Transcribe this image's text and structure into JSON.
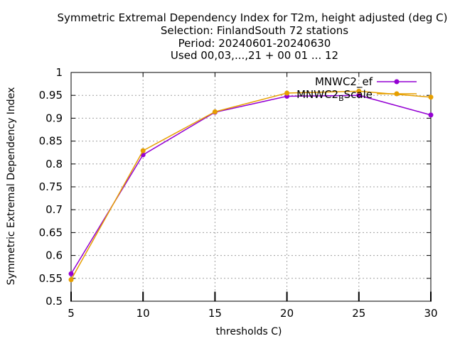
{
  "chart_data": {
    "type": "line",
    "title_lines": [
      "Symmetric Extremal Dependency Index  for T2m, height adjusted (deg C)",
      "Selection: FinlandSouth     72 stations",
      "Period: 20240601-20240630",
      "Used 00,03,...,21 + 00 01 ... 12"
    ],
    "xlabel": "thresholds C)",
    "ylabel": "Symmetric Extremal Dependency Index",
    "xlim": [
      5,
      30
    ],
    "ylim": [
      0.5,
      1.0
    ],
    "xticks": [
      "5",
      "10",
      "15",
      "20",
      "25",
      "30"
    ],
    "yticks": [
      "0.5",
      "0.55",
      "0.6",
      "0.65",
      "0.7",
      "0.75",
      "0.8",
      "0.85",
      "0.9",
      "0.95",
      "1"
    ],
    "grid": true,
    "legend_position": "top-right",
    "x": [
      5,
      10,
      15,
      20,
      25,
      30
    ],
    "series": [
      {
        "name": "MNWC2_ef",
        "legend_text": "MNWC2_ef",
        "color": "#9400d3",
        "values": [
          0.56,
          0.82,
          0.913,
          0.948,
          0.95,
          0.907
        ]
      },
      {
        "name": "MNWC2_BScale",
        "legend_text": "MNWC2",
        "legend_sub": "B",
        "legend_tail": "Scale",
        "color": "#e69f00",
        "values": [
          0.547,
          0.829,
          0.914,
          0.955,
          0.959,
          0.946
        ]
      }
    ],
    "small_markers_y": 0.51
  }
}
